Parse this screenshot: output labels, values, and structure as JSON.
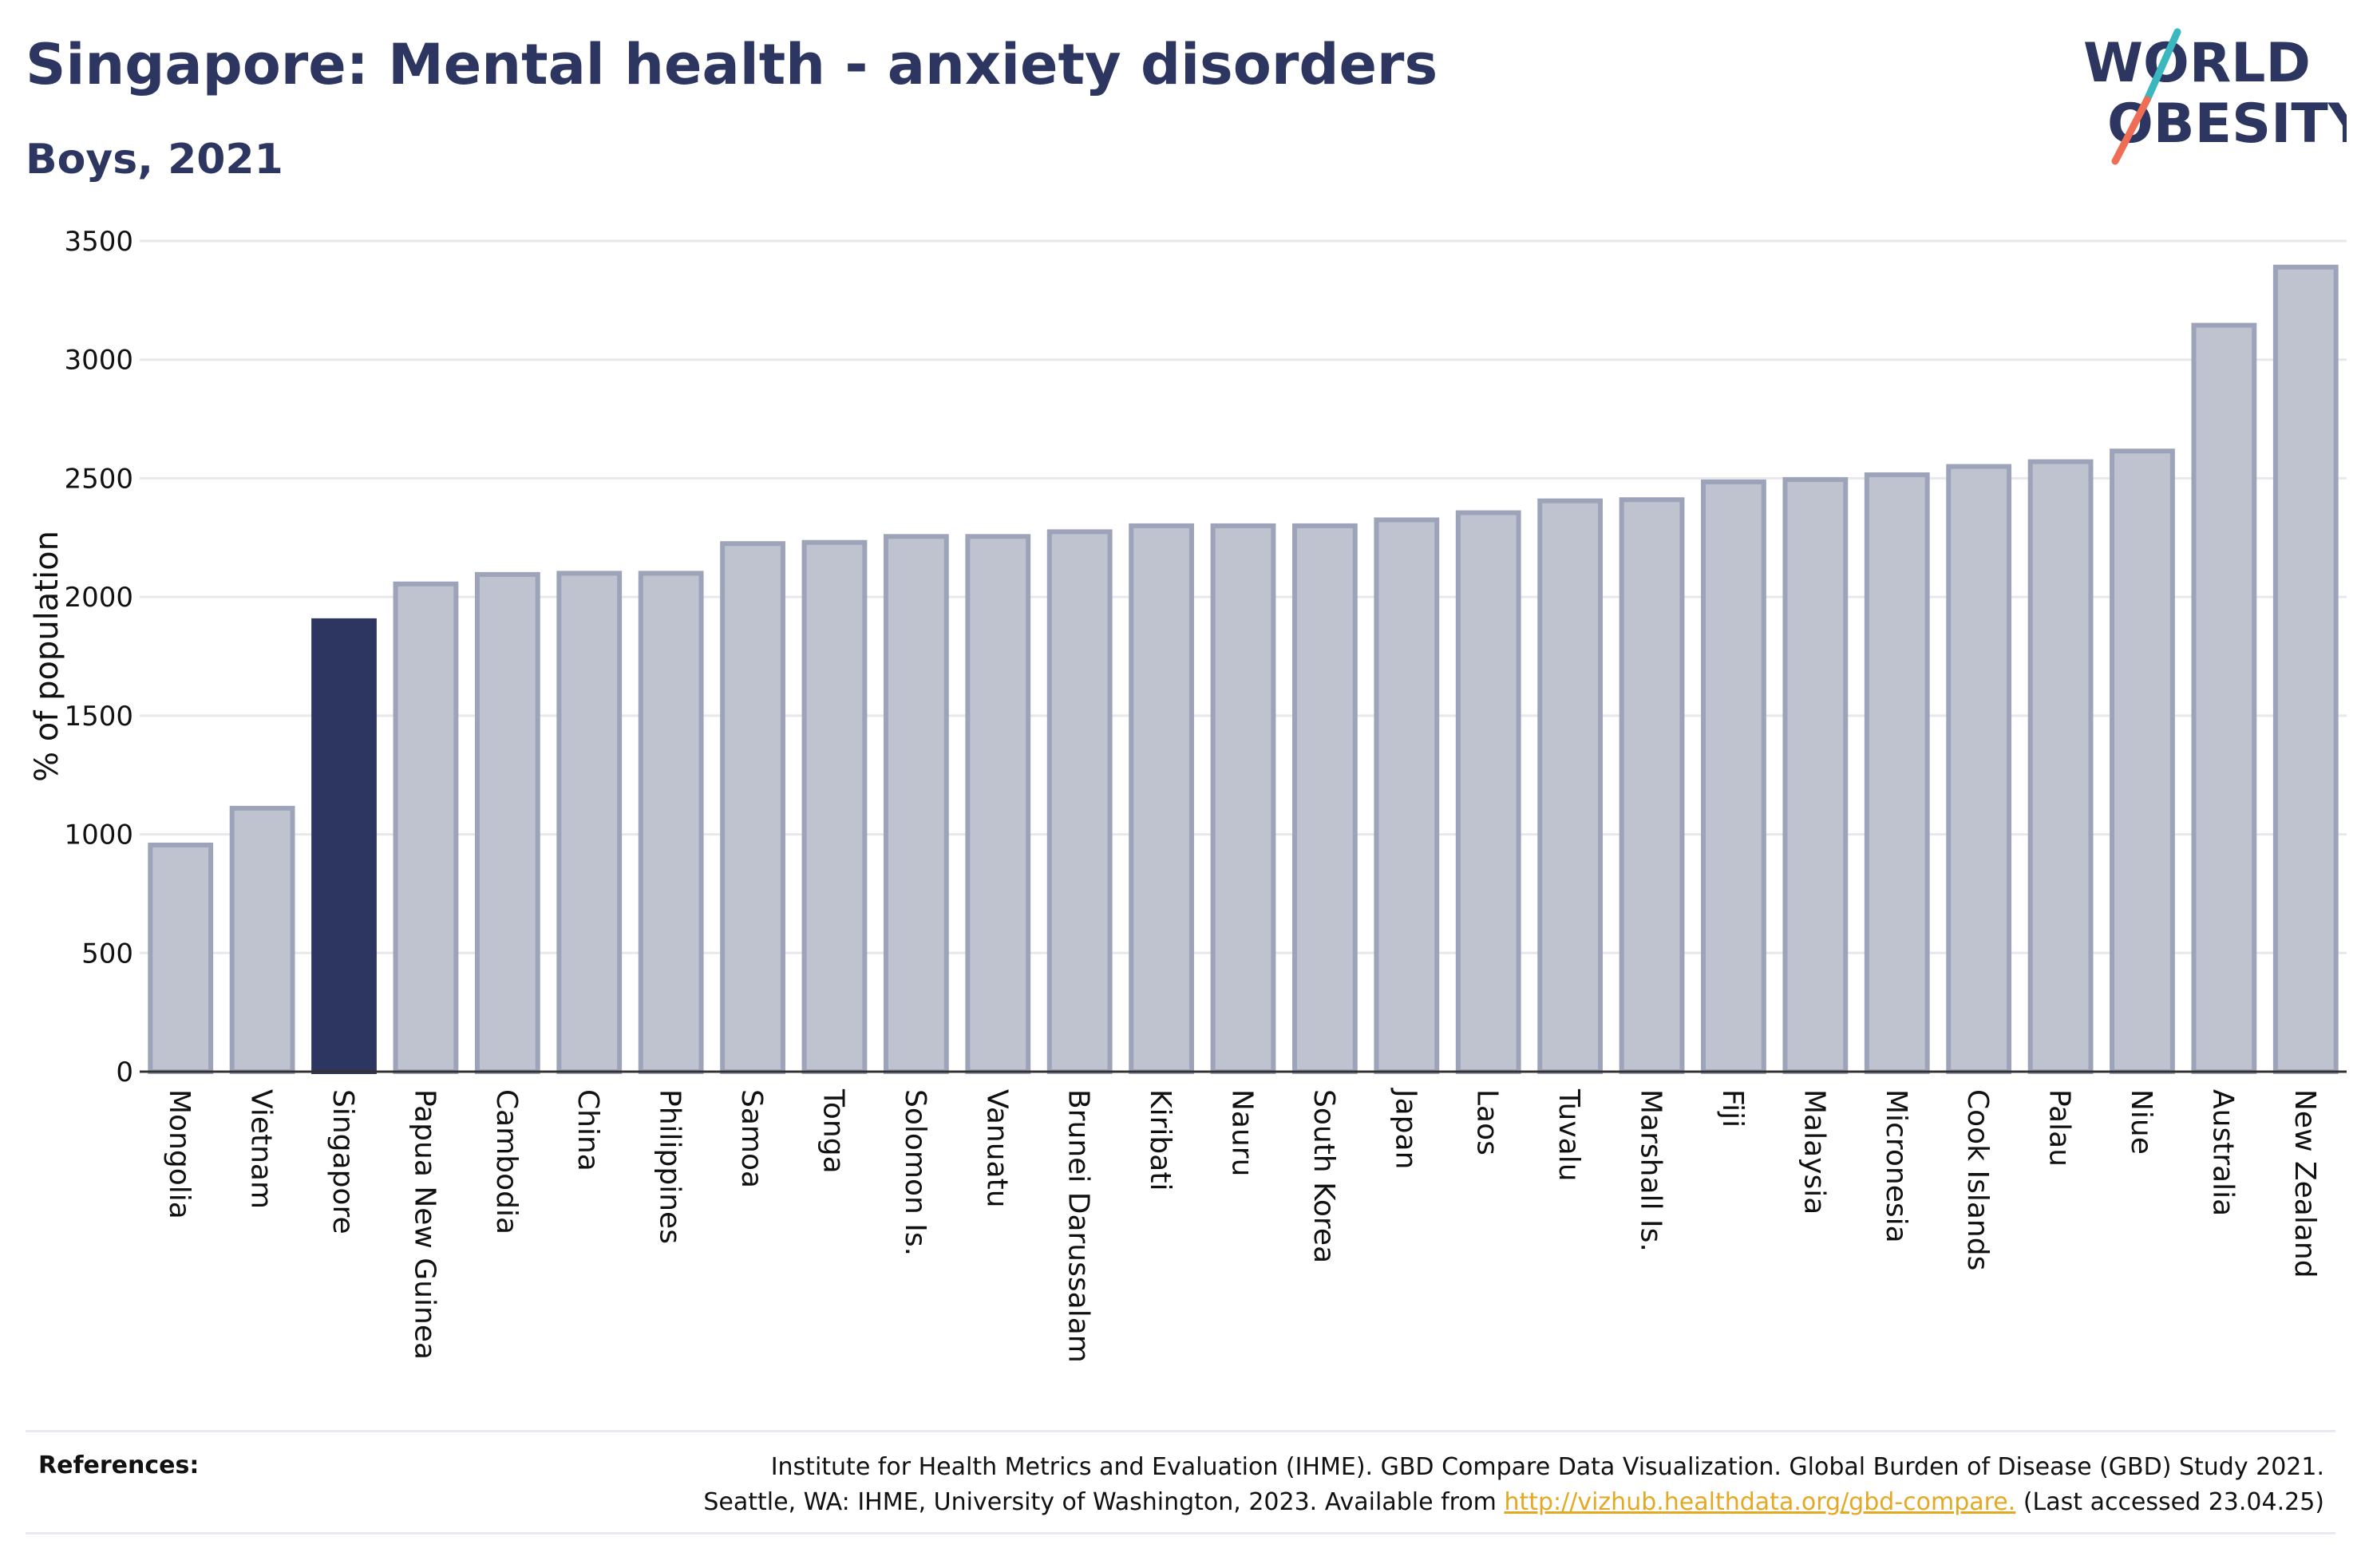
{
  "header": {
    "title": "Singapore: Mental health - anxiety disorders",
    "subtitle": "Boys, 2021"
  },
  "logo": {
    "line1": "WORLD",
    "line2": "OBESITY"
  },
  "colors": {
    "highlight": "#2c3660",
    "bar_fill": "#bfc3d0",
    "bar_stroke": "#9da3b9",
    "grid": "#e7e8ec",
    "logo_text": "#2c3660",
    "logo_slash_teal": "#3ab7bf",
    "logo_slash_coral": "#ef6c55",
    "link": "#e5a823"
  },
  "chart_data": {
    "type": "bar",
    "title": "Singapore: Mental health - anxiety disorders",
    "subtitle": "Boys, 2021",
    "xlabel": "",
    "ylabel": "% of population",
    "ylim": [
      0,
      3500
    ],
    "yticks": [
      0,
      500,
      1000,
      1500,
      2000,
      2500,
      3000,
      3500
    ],
    "grid": true,
    "highlight": "Singapore",
    "categories": [
      "Mongolia",
      "Vietnam",
      "Singapore",
      "Papua New Guinea",
      "Cambodia",
      "China",
      "Philippines",
      "Samoa",
      "Tonga",
      "Solomon Is.",
      "Vanuatu",
      "Brunei Darussalam",
      "Kiribati",
      "Nauru",
      "South Korea",
      "Japan",
      "Laos",
      "Tuvalu",
      "Marshall Is.",
      "Fiji",
      "Malaysia",
      "Micronesia",
      "Cook Islands",
      "Palau",
      "Niue",
      "Australia",
      "New Zealand"
    ],
    "values": [
      955,
      1110,
      1900,
      2055,
      2095,
      2100,
      2100,
      2225,
      2230,
      2255,
      2255,
      2275,
      2300,
      2300,
      2300,
      2325,
      2355,
      2405,
      2410,
      2485,
      2495,
      2515,
      2550,
      2570,
      2615,
      3145,
      3390
    ]
  },
  "references": {
    "label": "References:",
    "line1": "Institute for Health Metrics and Evaluation (IHME). GBD Compare Data Visualization. Global Burden of Disease (GBD) Study 2021.",
    "line2_prefix": "Seattle, WA: IHME, University of Washington, 2023. Available from ",
    "link": "http://vizhub.healthdata.org/gbd-compare.",
    "line2_suffix": " (Last accessed 23.04.25)"
  }
}
